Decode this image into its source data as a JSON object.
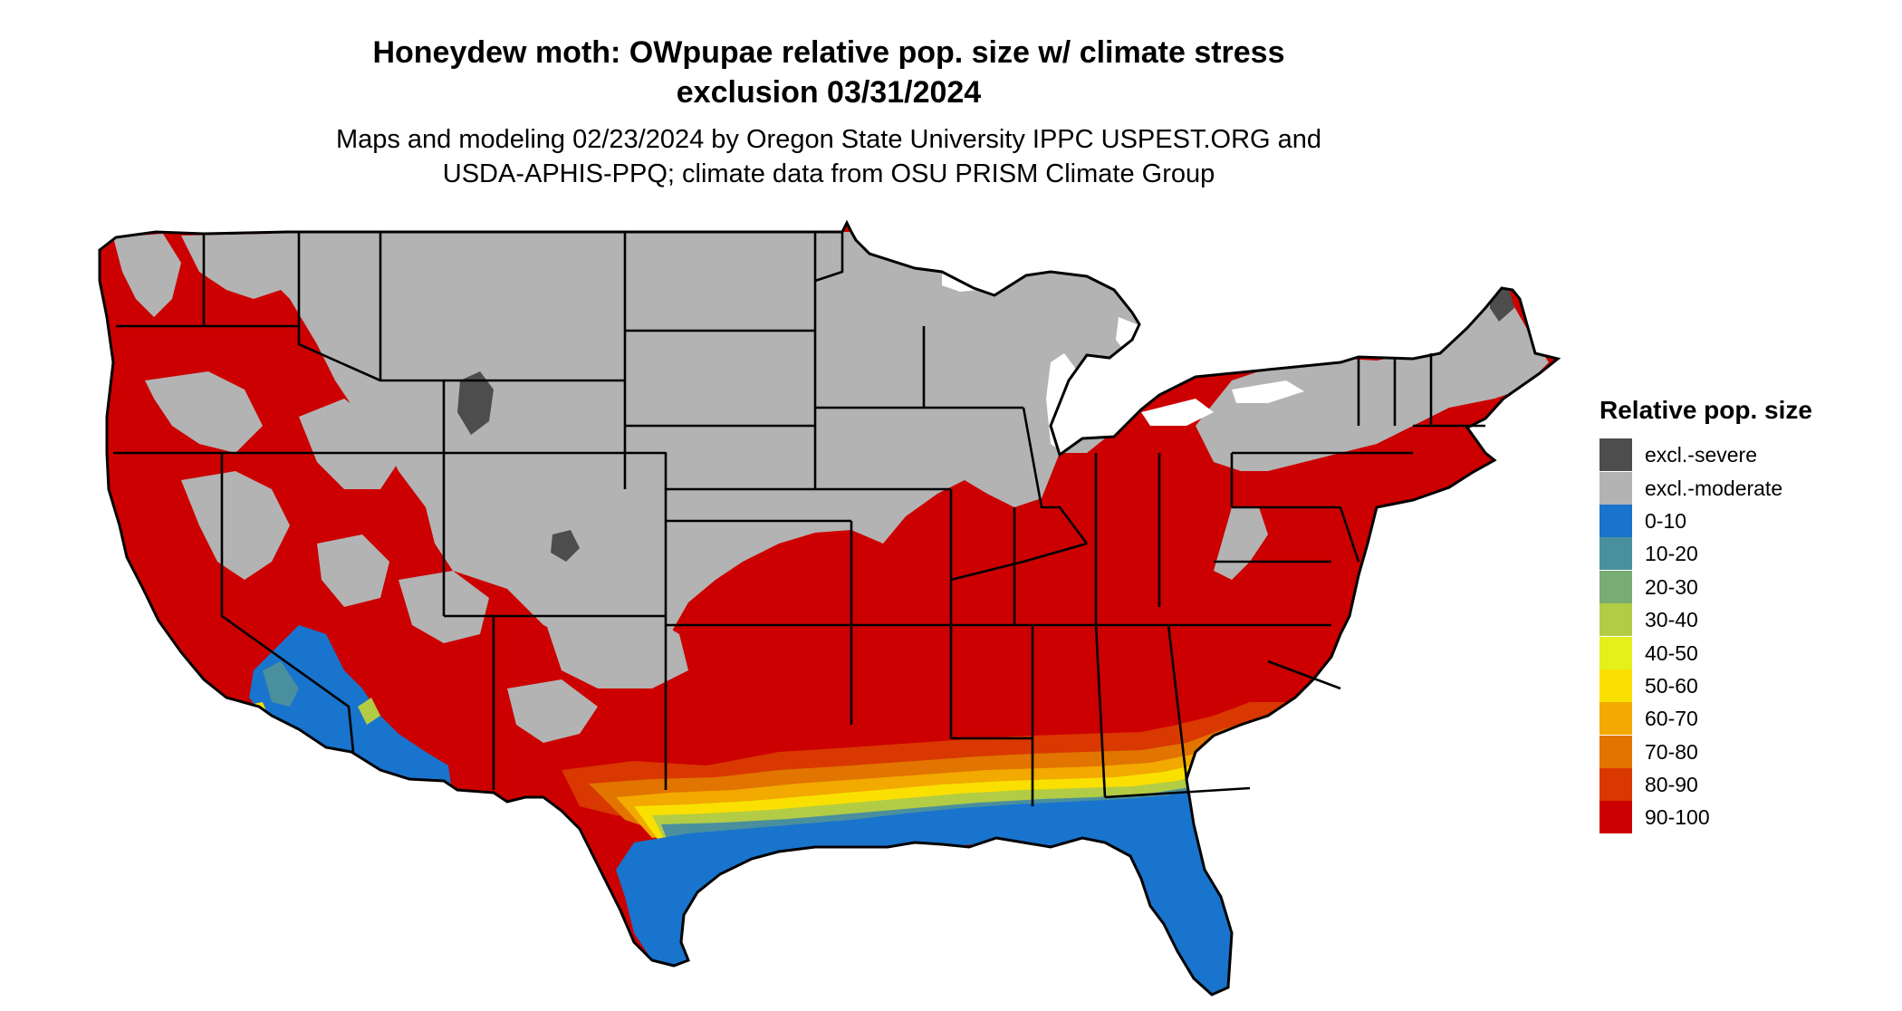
{
  "title_line1": "Honeydew moth: OWpupae relative pop. size w/ climate stress",
  "title_line2": "exclusion 03/31/2024",
  "subtitle_line1": "Maps and modeling 02/23/2024 by Oregon State University IPPC USPEST.ORG and",
  "subtitle_line2": "USDA-APHIS-PPQ; climate data from OSU PRISM Climate Group",
  "legend": {
    "title": "Relative pop. size",
    "items": [
      {
        "label": "excl.-severe",
        "color": "#4d4d4d"
      },
      {
        "label": "excl.-moderate",
        "color": "#b3b3b3"
      },
      {
        "label": "0-10",
        "color": "#1874cd"
      },
      {
        "label": "10-20",
        "color": "#4a8f9e"
      },
      {
        "label": "20-30",
        "color": "#79ab74"
      },
      {
        "label": "30-40",
        "color": "#b2cc45"
      },
      {
        "label": "40-50",
        "color": "#e4ef1b"
      },
      {
        "label": "50-60",
        "color": "#f9e000"
      },
      {
        "label": "60-70",
        "color": "#f2a900"
      },
      {
        "label": "70-80",
        "color": "#e27400"
      },
      {
        "label": "80-90",
        "color": "#d93800"
      },
      {
        "label": "90-100",
        "color": "#cc0000"
      }
    ]
  }
}
